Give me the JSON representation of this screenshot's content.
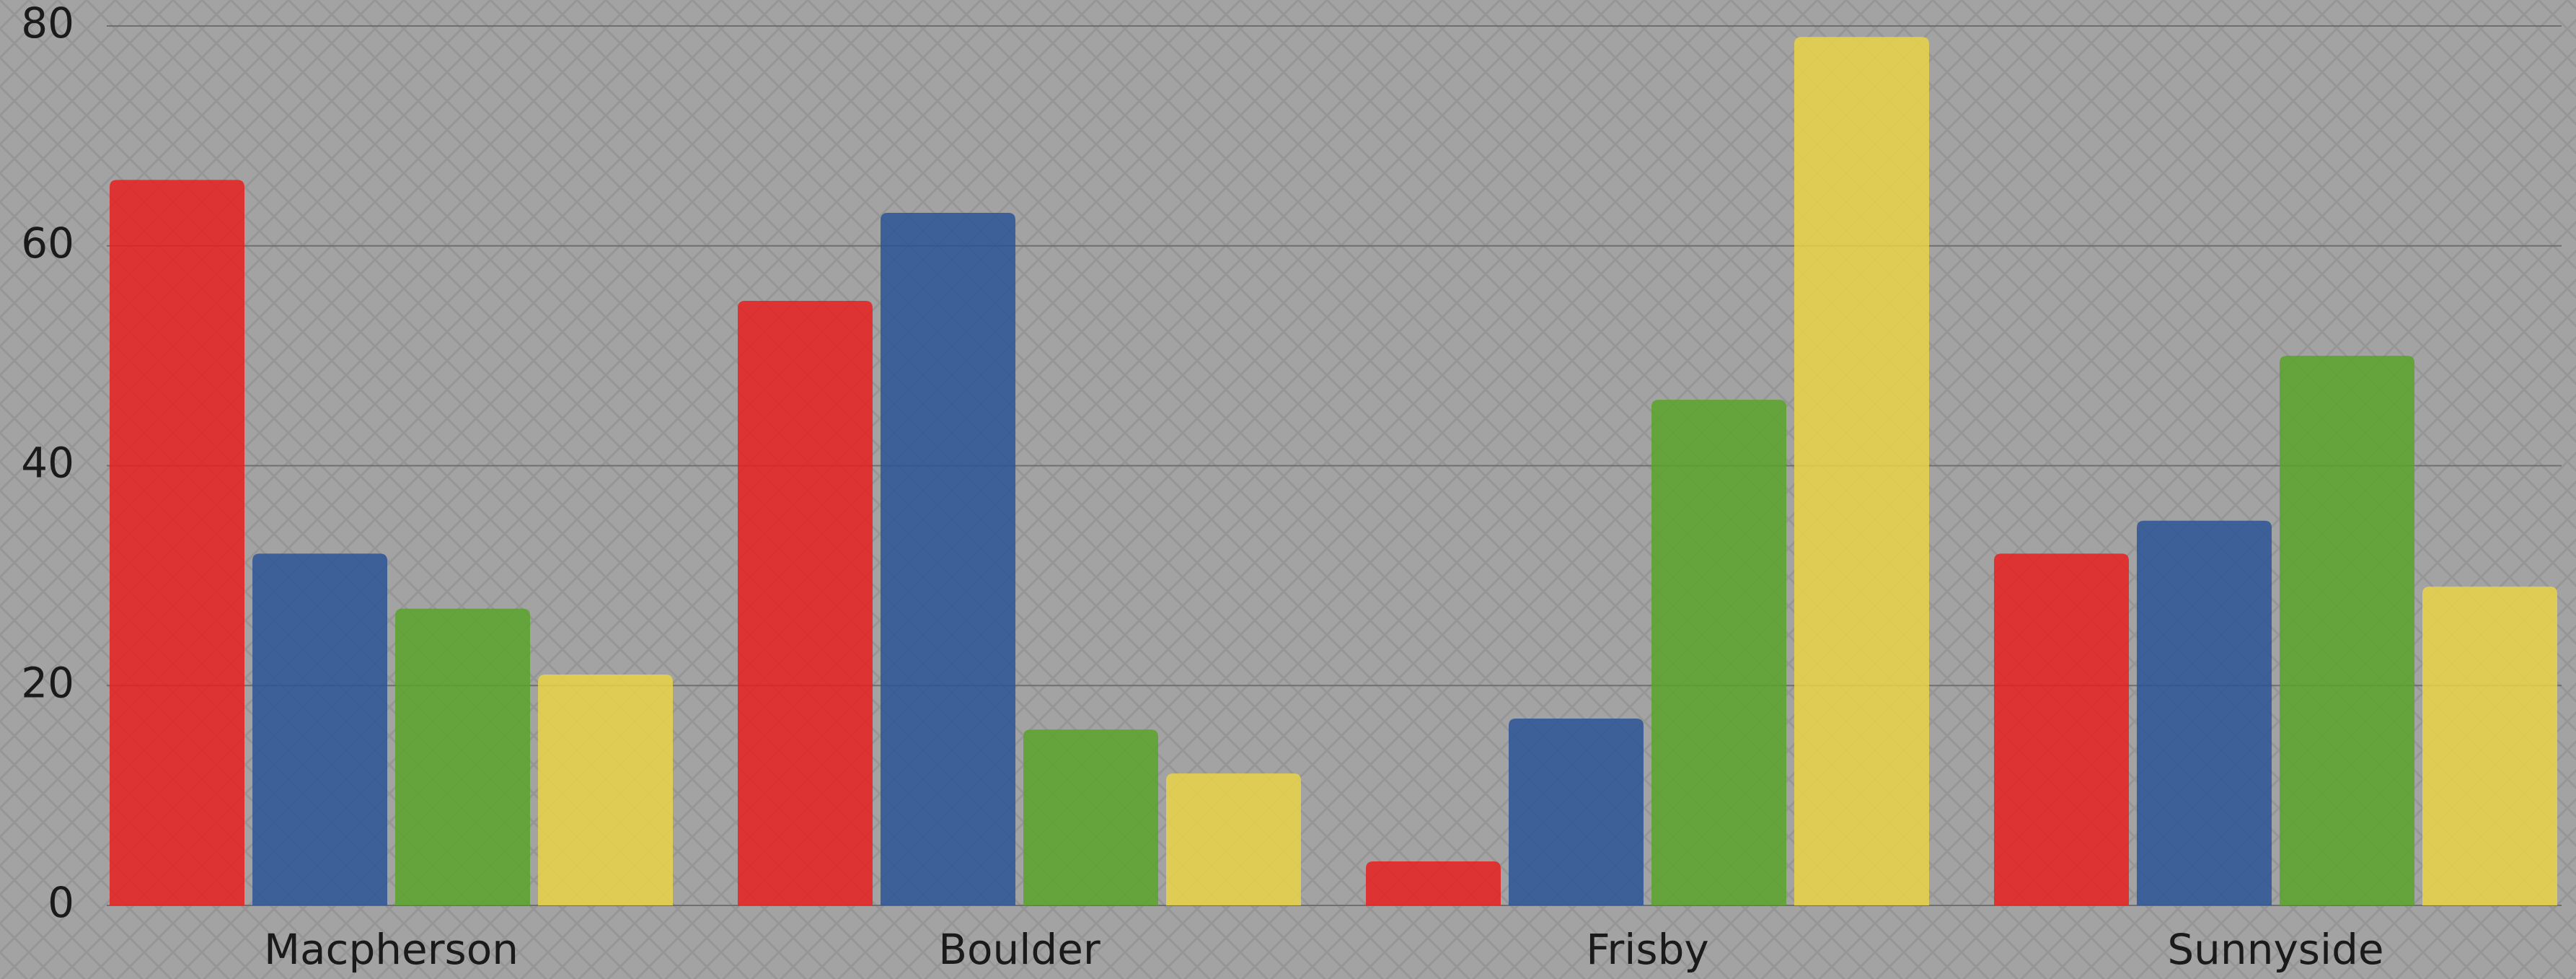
{
  "chart_data": {
    "type": "bar",
    "categories": [
      "Macpherson",
      "Boulder",
      "Frisby",
      "Sunnyside"
    ],
    "series": [
      {
        "color": "#e8201e",
        "values": [
          66,
          55,
          4,
          32
        ]
      },
      {
        "color": "#2d5596",
        "values": [
          32,
          63,
          17,
          35
        ]
      },
      {
        "color": "#5aa52a",
        "values": [
          27,
          16,
          46,
          50
        ]
      },
      {
        "color": "#e9d447",
        "values": [
          21,
          12,
          79,
          29
        ]
      }
    ],
    "ylim": [
      0,
      80
    ],
    "yticks": [
      0,
      20,
      40,
      60,
      80
    ],
    "grid": true
  }
}
